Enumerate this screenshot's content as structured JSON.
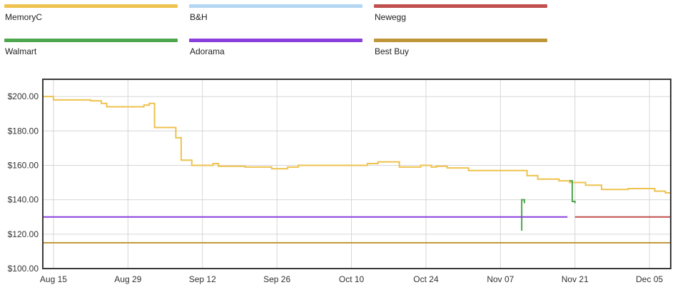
{
  "legend": {
    "items": [
      {
        "label": "MemoryC",
        "color": "#eec24e"
      },
      {
        "label": "B&H",
        "color": "#b3d7f3"
      },
      {
        "label": "Newegg",
        "color": "#c0504d"
      },
      {
        "label": "Walmart",
        "color": "#4ea64e"
      },
      {
        "label": "Adorama",
        "color": "#8a3fdc"
      },
      {
        "label": "Best Buy",
        "color": "#bf9637"
      }
    ]
  },
  "chart_data": {
    "type": "line",
    "step": true,
    "title": "",
    "xlabel": "",
    "ylabel": "",
    "grid": true,
    "legend_position": "top",
    "xlim": [
      "2023-08-13",
      "2023-12-09"
    ],
    "ylim": [
      100,
      210
    ],
    "y_ticks": [
      {
        "value": 100,
        "label": "$100.00"
      },
      {
        "value": 120,
        "label": "$120.00"
      },
      {
        "value": 140,
        "label": "$140.00"
      },
      {
        "value": 160,
        "label": "$160.00"
      },
      {
        "value": 180,
        "label": "$180.00"
      },
      {
        "value": 200,
        "label": "$200.00"
      }
    ],
    "x_ticks": [
      {
        "value": "2023-08-15",
        "label": "Aug 15"
      },
      {
        "value": "2023-08-29",
        "label": "Aug 29"
      },
      {
        "value": "2023-09-12",
        "label": "Sep 12"
      },
      {
        "value": "2023-09-26",
        "label": "Sep 26"
      },
      {
        "value": "2023-10-10",
        "label": "Oct 10"
      },
      {
        "value": "2023-10-24",
        "label": "Oct 24"
      },
      {
        "value": "2023-11-07",
        "label": "Nov 07"
      },
      {
        "value": "2023-11-21",
        "label": "Nov 21"
      },
      {
        "value": "2023-12-05",
        "label": "Dec 05"
      }
    ],
    "series": [
      {
        "name": "MemoryC",
        "color": "#eec24e",
        "points": [
          [
            "2023-08-13",
            210
          ],
          [
            "2023-08-13",
            200
          ],
          [
            "2023-08-15",
            198
          ],
          [
            "2023-08-22",
            197.5
          ],
          [
            "2023-08-24",
            196
          ],
          [
            "2023-08-25",
            194
          ],
          [
            "2023-09-01",
            195
          ],
          [
            "2023-09-02",
            196
          ],
          [
            "2023-09-03",
            182
          ],
          [
            "2023-09-07",
            176
          ],
          [
            "2023-09-08",
            163
          ],
          [
            "2023-09-10",
            160
          ],
          [
            "2023-09-14",
            161
          ],
          [
            "2023-09-15",
            159.5
          ],
          [
            "2023-09-20",
            159
          ],
          [
            "2023-09-25",
            158
          ],
          [
            "2023-09-28",
            159
          ],
          [
            "2023-09-30",
            160
          ],
          [
            "2023-10-03",
            160
          ],
          [
            "2023-10-06",
            160
          ],
          [
            "2023-10-13",
            161
          ],
          [
            "2023-10-15",
            162
          ],
          [
            "2023-10-19",
            159
          ],
          [
            "2023-10-23",
            160
          ],
          [
            "2023-10-25",
            159
          ],
          [
            "2023-10-26",
            159.5
          ],
          [
            "2023-10-28",
            158.5
          ],
          [
            "2023-11-01",
            157
          ],
          [
            "2023-11-12",
            154
          ],
          [
            "2023-11-14",
            152
          ],
          [
            "2023-11-18",
            151
          ],
          [
            "2023-11-20",
            150
          ],
          [
            "2023-11-23",
            148.5
          ],
          [
            "2023-11-26",
            146
          ],
          [
            "2023-12-01",
            146.5
          ],
          [
            "2023-12-06",
            145
          ],
          [
            "2023-12-08",
            144
          ],
          [
            "2023-12-09",
            140
          ]
        ]
      },
      {
        "name": "Walmart",
        "color": "#4ea64e",
        "points": [
          [
            "2023-11-11",
            122
          ],
          [
            "2023-11-11",
            140
          ],
          [
            "2023-11-11.5",
            138
          ]
        ]
      },
      {
        "name": "Walmart",
        "color": "#4ea64e",
        "points": [
          [
            "2023-11-20",
            151
          ],
          [
            "2023-11-20.5",
            150
          ],
          [
            "2023-11-20.5",
            139
          ],
          [
            "2023-11-21",
            138
          ]
        ]
      },
      {
        "name": "Adorama",
        "color": "#8a3fdc",
        "points": [
          [
            "2023-08-13",
            130
          ],
          [
            "2023-11-19.6",
            130
          ]
        ]
      },
      {
        "name": "Newegg",
        "color": "#c0504d",
        "points": [
          [
            "2023-11-21",
            130
          ],
          [
            "2023-12-09",
            130
          ]
        ]
      },
      {
        "name": "Best Buy",
        "color": "#bf9637",
        "points": [
          [
            "2023-08-13",
            115
          ],
          [
            "2023-12-09",
            115
          ]
        ]
      }
    ]
  }
}
